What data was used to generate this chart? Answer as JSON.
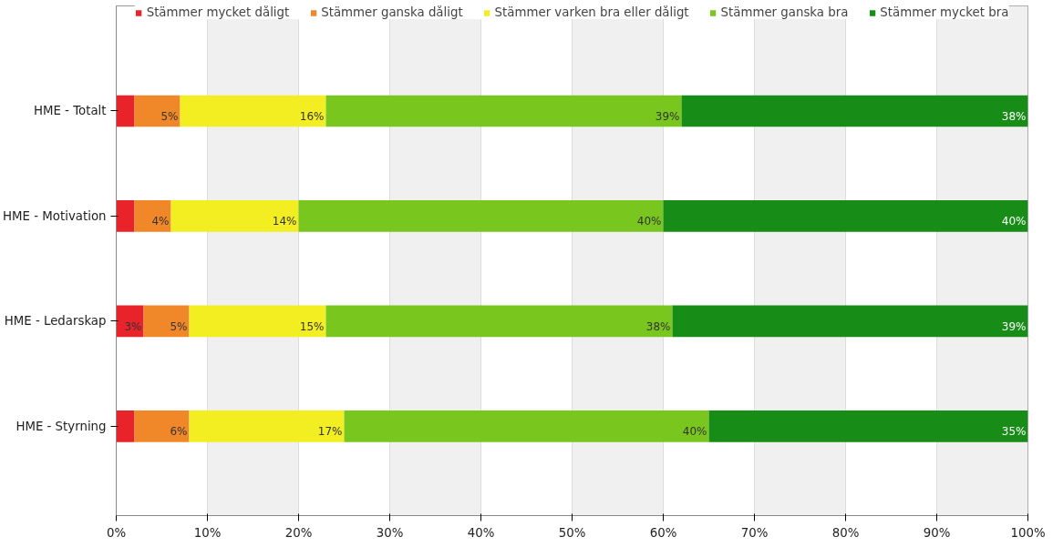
{
  "chart_data": {
    "type": "bar",
    "orientation": "horizontal",
    "stacked": true,
    "categories": [
      "HME - Totalt",
      "HME - Motivation",
      "HME - Ledarskap",
      "HME - Styrning"
    ],
    "series": [
      {
        "name": "Stämmer mycket dåligt",
        "color": "#e8232a",
        "values": [
          2,
          2,
          3,
          2
        ],
        "value_labels": [
          null,
          null,
          "3%",
          null
        ]
      },
      {
        "name": "Stämmer ganska dåligt",
        "color": "#f0882a",
        "values": [
          5,
          4,
          5,
          6
        ],
        "value_labels": [
          "5%",
          "4%",
          "5%",
          "6%"
        ]
      },
      {
        "name": "Stämmer varken bra eller dåligt",
        "color": "#f2ee22",
        "values": [
          16,
          14,
          15,
          17
        ],
        "value_labels": [
          "16%",
          "14%",
          "15%",
          "17%"
        ]
      },
      {
        "name": "Stämmer ganska bra",
        "color": "#78c61e",
        "values": [
          39,
          40,
          38,
          40
        ],
        "value_labels": [
          "39%",
          "40%",
          "38%",
          "40%"
        ]
      },
      {
        "name": "Stämmer mycket bra",
        "color": "#178c17",
        "values": [
          38,
          40,
          39,
          35
        ],
        "value_labels": [
          "38%",
          "40%",
          "39%",
          "35%"
        ]
      }
    ],
    "xlim": [
      0,
      100
    ],
    "xticks": [
      {
        "value": 0,
        "label": "0%"
      },
      {
        "value": 10,
        "label": "10%"
      },
      {
        "value": 20,
        "label": "20%"
      },
      {
        "value": 30,
        "label": "30%"
      },
      {
        "value": 40,
        "label": "40%"
      },
      {
        "value": 50,
        "label": "50%"
      },
      {
        "value": 60,
        "label": "60%"
      },
      {
        "value": 70,
        "label": "70%"
      },
      {
        "value": 80,
        "label": "80%"
      },
      {
        "value": 90,
        "label": "90%"
      },
      {
        "value": 100,
        "label": "100%"
      }
    ],
    "grid": "x",
    "legend": "top"
  }
}
